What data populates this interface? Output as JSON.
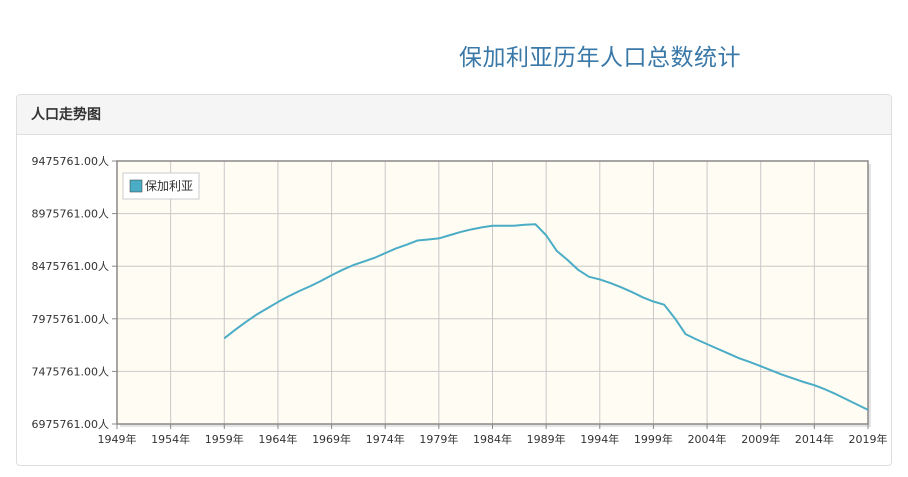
{
  "page": {
    "title": "保加利亚历年人口总数统计"
  },
  "panel": {
    "heading": "人口走势图"
  },
  "colors": {
    "line": "#4bacc6",
    "plot_background": "#fffdf3",
    "grid": "#c8c8c8",
    "axis": "#888888",
    "title": "#3a78a8"
  },
  "chart_data": {
    "type": "line",
    "title": "",
    "xlabel": "",
    "ylabel": "",
    "xlim": [
      1949,
      2019
    ],
    "ylim": [
      6975761,
      9475761
    ],
    "x_ticks": [
      1949,
      1954,
      1959,
      1964,
      1969,
      1974,
      1979,
      1984,
      1989,
      1994,
      1999,
      2004,
      2009,
      2014,
      2019
    ],
    "x_tick_labels": [
      "1949年",
      "1954年",
      "1959年",
      "1964年",
      "1969年",
      "1974年",
      "1979年",
      "1984年",
      "1989年",
      "1994年",
      "1999年",
      "2004年",
      "2009年",
      "2014年",
      "2019年"
    ],
    "y_ticks": [
      6975761,
      7475761,
      7975761,
      8475761,
      8975761,
      9475761
    ],
    "y_tick_labels": [
      "6975761.00人",
      "7475761.00人",
      "7975761.00人",
      "8475761.00人",
      "8975761.00人",
      "9475761.00人"
    ],
    "grid": true,
    "legend_position": "top-left",
    "series": [
      {
        "name": "保加利亚",
        "x": [
          1959,
          1960,
          1961,
          1962,
          1963,
          1964,
          1965,
          1966,
          1967,
          1968,
          1969,
          1970,
          1971,
          1972,
          1973,
          1974,
          1975,
          1976,
          1977,
          1978,
          1979,
          1980,
          1981,
          1982,
          1983,
          1984,
          1985,
          1986,
          1987,
          1988,
          1989,
          1990,
          1991,
          1992,
          1993,
          1994,
          1995,
          1996,
          1997,
          1998,
          1999,
          2000,
          2001,
          2002,
          2003,
          2004,
          2005,
          2006,
          2007,
          2008,
          2009,
          2010,
          2011,
          2012,
          2013,
          2014,
          2015,
          2016,
          2017,
          2018,
          2019
        ],
        "y": [
          7790000,
          7870000,
          7945000,
          8015000,
          8075000,
          8135000,
          8190000,
          8240000,
          8285000,
          8335000,
          8390000,
          8440000,
          8485000,
          8520000,
          8555000,
          8600000,
          8645000,
          8680000,
          8720000,
          8730000,
          8740000,
          8770000,
          8800000,
          8825000,
          8845000,
          8860000,
          8860000,
          8860000,
          8870000,
          8875000,
          8770000,
          8620000,
          8535000,
          8440000,
          8375000,
          8350000,
          8315000,
          8275000,
          8230000,
          8180000,
          8140000,
          8110000,
          7980000,
          7830000,
          7780000,
          7735000,
          7690000,
          7645000,
          7600000,
          7565000,
          7525000,
          7485000,
          7445000,
          7410000,
          7375000,
          7345000,
          7305000,
          7260000,
          7210000,
          7160000,
          7110000
        ]
      }
    ]
  }
}
